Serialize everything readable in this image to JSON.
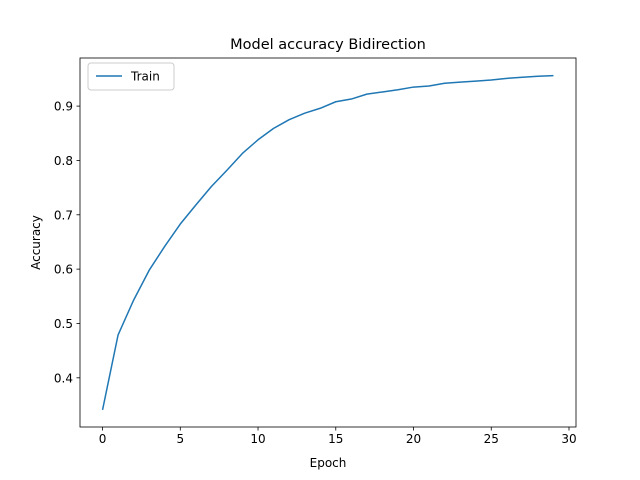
{
  "chart_data": {
    "type": "line",
    "title": "Model accuracy Bidirection",
    "xlabel": "Epoch",
    "ylabel": "Accuracy",
    "xlim": [
      -1.45,
      30.45
    ],
    "ylim": [
      0.3095,
      0.9885
    ],
    "xticks": [
      0,
      5,
      10,
      15,
      20,
      25,
      30
    ],
    "yticks": [
      0.4,
      0.5,
      0.6,
      0.7,
      0.8,
      0.9
    ],
    "ytick_labels": [
      "0.4",
      "0.5",
      "0.6",
      "0.7",
      "0.8",
      "0.9"
    ],
    "grid": false,
    "legend": {
      "placement": "upper-left"
    },
    "colors": {
      "series": "#1f77b4"
    },
    "x": [
      0,
      1,
      2,
      3,
      4,
      5,
      6,
      7,
      8,
      9,
      10,
      11,
      12,
      13,
      14,
      15,
      16,
      17,
      18,
      19,
      20,
      21,
      22,
      23,
      24,
      25,
      26,
      27,
      28,
      29
    ],
    "series": [
      {
        "name": "Train",
        "values": [
          0.341,
          0.479,
          0.543,
          0.598,
          0.642,
          0.683,
          0.718,
          0.752,
          0.782,
          0.813,
          0.838,
          0.859,
          0.875,
          0.887,
          0.896,
          0.908,
          0.913,
          0.922,
          0.926,
          0.93,
          0.935,
          0.937,
          0.942,
          0.944,
          0.946,
          0.948,
          0.951,
          0.953,
          0.955,
          0.956
        ]
      }
    ]
  }
}
